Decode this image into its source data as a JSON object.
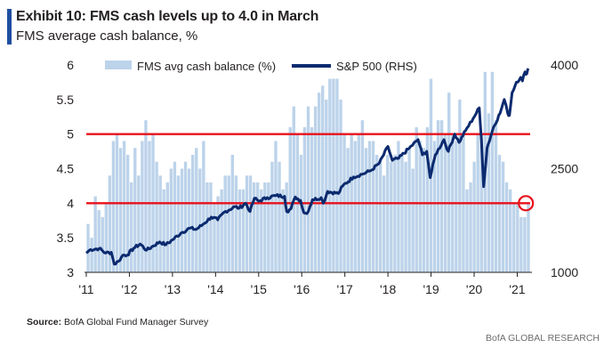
{
  "header": {
    "title": "Exhibit 10: FMS cash levels up to 4.0 in March",
    "subtitle": "FMS average cash balance, %"
  },
  "footer": {
    "source_label": "Source:",
    "source_text": "BofA Global Fund Manager Survey",
    "brand": "BofA GLOBAL RESEARCH"
  },
  "colors": {
    "bars": "#bcd3ea",
    "sp500": "#0b2a6f",
    "reference_lines": "#e8121b"
  },
  "chart_data": {
    "type": "bar+line",
    "title": "Exhibit 10: FMS cash levels up to 4.0 in March",
    "x_ticks": [
      "'11",
      "'12",
      "'13",
      "'14",
      "'15",
      "'16",
      "'17",
      "'18",
      "'19",
      "'20",
      "'21"
    ],
    "x_range": [
      2011.0,
      2021.3
    ],
    "y_left": {
      "range": [
        3,
        6
      ],
      "ticks": [
        "3",
        "3.5",
        "4",
        "4.5",
        "5",
        "5.5",
        "6"
      ]
    },
    "y_right": {
      "range": [
        1000,
        4000
      ],
      "ticks": [
        "1000",
        "2500",
        "4000"
      ]
    },
    "legend": [
      "FMS avg cash balance (%)",
      "S&P 500 (RHS)"
    ],
    "legend_position": "top",
    "reference_lines": [
      5.0,
      4.0
    ],
    "highlight": {
      "x": 2021.2,
      "y": 4.0
    },
    "series": [
      {
        "name": "FMS avg cash balance (%)",
        "axis": "left",
        "type": "bar",
        "values": [
          3.7,
          3.5,
          4.1,
          3.9,
          3.8,
          4.0,
          4.4,
          4.9,
          5.0,
          4.8,
          4.9,
          4.7,
          4.3,
          4.8,
          4.4,
          4.9,
          5.2,
          4.9,
          5.0,
          4.6,
          4.4,
          4.2,
          4.3,
          4.5,
          4.6,
          4.4,
          4.5,
          4.6,
          4.5,
          4.7,
          4.8,
          4.5,
          4.9,
          4.3,
          4.3,
          4.0,
          4.1,
          4.2,
          4.4,
          4.4,
          4.7,
          4.4,
          4.2,
          4.2,
          4.4,
          4.4,
          4.3,
          4.3,
          4.2,
          4.3,
          4.3,
          4.6,
          4.9,
          4.6,
          4.2,
          4.3,
          5.1,
          5.4,
          5.0,
          4.7,
          5.1,
          5.4,
          5.1,
          5.4,
          5.6,
          5.7,
          5.5,
          5.8,
          5.8,
          5.8,
          5.5,
          5.0,
          4.8,
          5.0,
          4.9,
          5.0,
          5.2,
          4.8,
          4.9,
          4.9,
          4.7,
          4.6,
          4.4,
          4.7,
          4.6,
          4.7,
          4.9,
          4.7,
          4.6,
          4.8,
          4.5,
          5.1,
          4.9,
          4.8,
          5.1,
          5.8,
          4.9,
          5.2,
          5.2,
          5.0,
          5.6,
          5.0,
          4.9,
          5.5,
          5.0,
          4.2,
          4.3,
          4.6,
          5.0,
          5.0,
          5.9,
          5.3,
          5.9,
          5.2,
          4.7,
          4.6,
          4.3,
          4.2,
          4.0,
          4.0,
          3.8,
          3.8,
          4.0
        ]
      },
      {
        "name": "S&P 500 (RHS)",
        "axis": "right",
        "type": "line",
        "points": [
          [
            2011.0,
            1280
          ],
          [
            2011.1,
            1330
          ],
          [
            2011.3,
            1345
          ],
          [
            2011.45,
            1280
          ],
          [
            2011.58,
            1290
          ],
          [
            2011.65,
            1120
          ],
          [
            2011.75,
            1160
          ],
          [
            2011.85,
            1250
          ],
          [
            2011.95,
            1250
          ],
          [
            2012.1,
            1350
          ],
          [
            2012.25,
            1410
          ],
          [
            2012.4,
            1320
          ],
          [
            2012.55,
            1380
          ],
          [
            2012.7,
            1440
          ],
          [
            2012.85,
            1400
          ],
          [
            2013.0,
            1470
          ],
          [
            2013.2,
            1570
          ],
          [
            2013.4,
            1640
          ],
          [
            2013.55,
            1620
          ],
          [
            2013.7,
            1690
          ],
          [
            2013.9,
            1800
          ],
          [
            2014.05,
            1760
          ],
          [
            2014.2,
            1870
          ],
          [
            2014.45,
            1950
          ],
          [
            2014.55,
            1930
          ],
          [
            2014.7,
            2000
          ],
          [
            2014.8,
            1880
          ],
          [
            2014.9,
            2070
          ],
          [
            2015.0,
            2030
          ],
          [
            2015.2,
            2080
          ],
          [
            2015.4,
            2110
          ],
          [
            2015.6,
            2100
          ],
          [
            2015.65,
            1880
          ],
          [
            2015.75,
            1920
          ],
          [
            2015.85,
            2090
          ],
          [
            2015.97,
            2040
          ],
          [
            2016.05,
            1860
          ],
          [
            2016.12,
            1850
          ],
          [
            2016.25,
            2050
          ],
          [
            2016.45,
            2080
          ],
          [
            2016.5,
            2000
          ],
          [
            2016.6,
            2170
          ],
          [
            2016.85,
            2140
          ],
          [
            2016.95,
            2250
          ],
          [
            2017.2,
            2380
          ],
          [
            2017.4,
            2420
          ],
          [
            2017.6,
            2470
          ],
          [
            2017.8,
            2580
          ],
          [
            2018.0,
            2820
          ],
          [
            2018.1,
            2620
          ],
          [
            2018.25,
            2650
          ],
          [
            2018.5,
            2800
          ],
          [
            2018.7,
            2920
          ],
          [
            2018.8,
            2700
          ],
          [
            2018.9,
            2750
          ],
          [
            2018.98,
            2370
          ],
          [
            2019.1,
            2700
          ],
          [
            2019.3,
            2920
          ],
          [
            2019.4,
            2750
          ],
          [
            2019.55,
            3000
          ],
          [
            2019.65,
            2880
          ],
          [
            2019.8,
            3050
          ],
          [
            2019.98,
            3230
          ],
          [
            2020.12,
            3380
          ],
          [
            2020.17,
            2900
          ],
          [
            2020.22,
            2240
          ],
          [
            2020.3,
            2800
          ],
          [
            2020.45,
            3100
          ],
          [
            2020.6,
            3300
          ],
          [
            2020.7,
            3500
          ],
          [
            2020.78,
            3300
          ],
          [
            2020.82,
            3270
          ],
          [
            2020.88,
            3600
          ],
          [
            2020.98,
            3750
          ],
          [
            2021.08,
            3820
          ],
          [
            2021.12,
            3770
          ],
          [
            2021.18,
            3900
          ],
          [
            2021.22,
            3870
          ],
          [
            2021.25,
            3950
          ]
        ]
      }
    ]
  }
}
